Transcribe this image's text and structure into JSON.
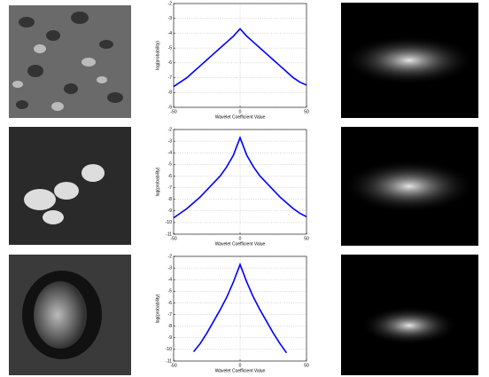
{
  "chart_data": [
    {
      "type": "line",
      "xlabel": "Wavelet Coefficient Value",
      "ylabel": "log(probability)",
      "x": [
        -50,
        -45,
        -40,
        -35,
        -30,
        -25,
        -20,
        -15,
        -10,
        -5,
        0,
        5,
        10,
        15,
        20,
        25,
        30,
        35,
        40,
        45,
        50
      ],
      "values": [
        -7.6,
        -7.3,
        -7.0,
        -6.6,
        -6.2,
        -5.8,
        -5.4,
        -5.0,
        -4.6,
        -4.2,
        -3.7,
        -4.2,
        -4.6,
        -5.0,
        -5.4,
        -5.8,
        -6.2,
        -6.6,
        -7.0,
        -7.3,
        -7.5
      ],
      "color": "#0000ff",
      "xlim": [
        -50,
        50
      ],
      "ylim": [
        -9,
        -2
      ],
      "xticks": [
        -50,
        0,
        50
      ],
      "yticks": [
        -9,
        -8,
        -7,
        -6,
        -5,
        -4,
        -3,
        -2
      ],
      "grid": true
    },
    {
      "type": "line",
      "xlabel": "Wavelet Coefficient Value",
      "ylabel": "log(probability)",
      "x": [
        -50,
        -45,
        -40,
        -35,
        -30,
        -25,
        -20,
        -15,
        -10,
        -5,
        0,
        5,
        10,
        15,
        20,
        25,
        30,
        35,
        40,
        45,
        50
      ],
      "values": [
        -9.6,
        -9.2,
        -8.8,
        -8.3,
        -7.8,
        -7.2,
        -6.6,
        -6.0,
        -5.2,
        -4.2,
        -2.7,
        -4.2,
        -5.2,
        -6.0,
        -6.6,
        -7.2,
        -7.8,
        -8.3,
        -8.8,
        -9.2,
        -9.5
      ],
      "color": "#0000ff",
      "xlim": [
        -50,
        50
      ],
      "ylim": [
        -11,
        -2
      ],
      "xticks": [
        -50,
        0,
        50
      ],
      "yticks": [
        -11,
        -10,
        -9,
        -8,
        -7,
        -6,
        -5,
        -4,
        -3,
        -2
      ],
      "grid": true
    },
    {
      "type": "line",
      "xlabel": "Wavelet Coefficient Value",
      "ylabel": "log(probability)",
      "x": [
        -50,
        -45,
        -40,
        -35,
        -30,
        -25,
        -20,
        -15,
        -10,
        -5,
        0,
        5,
        10,
        15,
        20,
        25,
        30,
        35,
        40,
        45,
        50
      ],
      "values": [
        null,
        null,
        null,
        -10.2,
        -9.5,
        -8.6,
        -7.6,
        -6.6,
        -5.5,
        -4.2,
        -2.7,
        -4.2,
        -5.5,
        -6.6,
        -7.6,
        -8.6,
        -9.5,
        -10.3,
        null,
        null,
        null
      ],
      "color": "#0000ff",
      "xlim": [
        -50,
        50
      ],
      "ylim": [
        -11,
        -2
      ],
      "xticks": [
        -50,
        0,
        50
      ],
      "yticks": [
        -11,
        -10,
        -9,
        -8,
        -7,
        -6,
        -5,
        -4,
        -3,
        -2
      ],
      "grid": true
    }
  ]
}
